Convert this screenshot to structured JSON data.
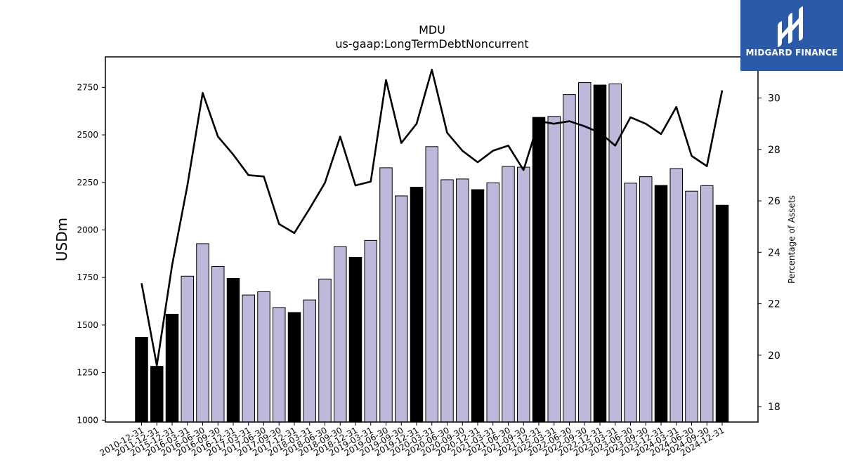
{
  "brand": {
    "name": "MIDGARD FINANCE",
    "color": "#2a5aa8"
  },
  "chart_data": {
    "type": "bar",
    "title": "MDU",
    "subtitle": "us-gaap:LongTermDebtNoncurrent",
    "ylabel": "USDm",
    "y2label": "Percentage of Assets",
    "ylim": [
      990,
      2910
    ],
    "y2lim": [
      17.4,
      31.6
    ],
    "yticks": [
      1000,
      1250,
      1500,
      1750,
      2000,
      2250,
      2500,
      2750
    ],
    "y2ticks": [
      18,
      20,
      22,
      24,
      26,
      28,
      30
    ],
    "colors": {
      "annual": "#000000",
      "quarterly": "#bcb9db",
      "line": "#000000"
    },
    "categories": [
      "2010-12-31",
      "2011-12-31",
      "2015-12-31",
      "2016-03-31",
      "2016-06-30",
      "2016-09-30",
      "2016-12-31",
      "2017-03-31",
      "2017-06-30",
      "2017-09-30",
      "2017-12-31",
      "2018-03-31",
      "2018-06-30",
      "2018-09-30",
      "2018-12-31",
      "2019-03-31",
      "2019-06-30",
      "2019-09-30",
      "2019-12-31",
      "2020-03-31",
      "2020-06-30",
      "2020-09-30",
      "2020-12-31",
      "2021-03-31",
      "2021-06-30",
      "2021-09-30",
      "2021-12-31",
      "2022-03-31",
      "2022-06-30",
      "2022-09-30",
      "2022-12-31",
      "2023-03-31",
      "2023-06-30",
      "2023-09-30",
      "2023-12-31",
      "2024-03-31",
      "2024-06-30",
      "2024-09-30",
      "2024-12-31"
    ],
    "series": [
      {
        "type": "bar",
        "values": [
          1435,
          1283,
          1557,
          1757,
          1928,
          1808,
          1745,
          1658,
          1675,
          1592,
          1566,
          1632,
          1742,
          1912,
          1856,
          1945,
          2327,
          2179,
          2225,
          2438,
          2264,
          2268,
          2212,
          2248,
          2334,
          2330,
          2592,
          2597,
          2712,
          2775,
          2762,
          2768,
          2246,
          2280,
          2234,
          2323,
          2204,
          2233,
          2130
        ],
        "annual": [
          true,
          true,
          true,
          false,
          false,
          false,
          true,
          false,
          false,
          false,
          true,
          false,
          false,
          false,
          true,
          false,
          false,
          false,
          true,
          false,
          false,
          false,
          true,
          false,
          false,
          false,
          true,
          false,
          false,
          false,
          true,
          false,
          false,
          false,
          true,
          false,
          false,
          false,
          true
        ]
      },
      {
        "type": "line",
        "axis": "right",
        "values": [
          22.8,
          19.6,
          23.5,
          26.6,
          30.2,
          28.5,
          27.8,
          27.0,
          26.95,
          25.1,
          24.75,
          25.7,
          26.7,
          28.5,
          26.6,
          26.75,
          30.7,
          28.25,
          29.0,
          31.1,
          28.65,
          27.95,
          27.5,
          27.95,
          28.15,
          27.2,
          29.1,
          29.0,
          29.1,
          28.9,
          28.65,
          28.15,
          29.25,
          29.0,
          28.6,
          29.65,
          27.75,
          27.35,
          30.3
        ]
      }
    ]
  }
}
